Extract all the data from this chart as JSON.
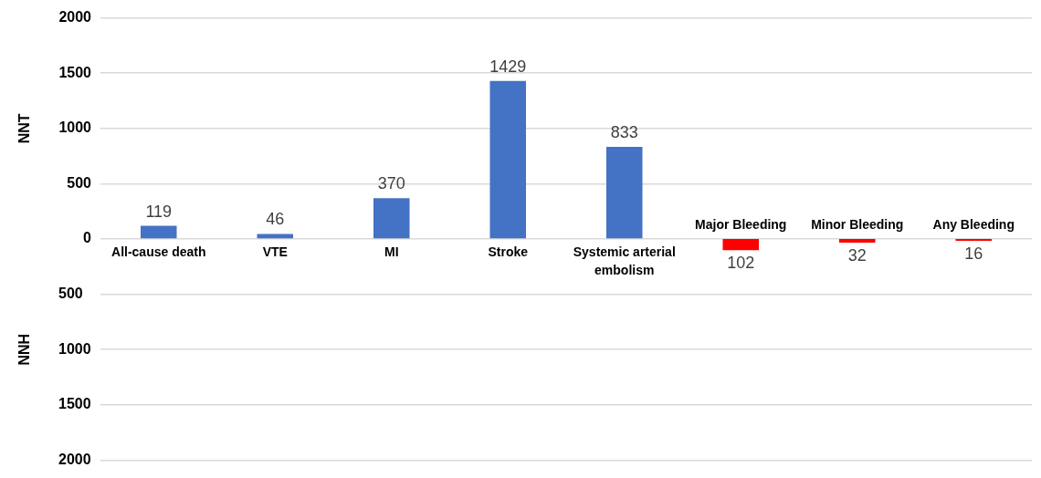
{
  "chart_data": {
    "type": "bar",
    "annotations": [
      "NNT"
    ],
    "y2label": "NNH",
    "categories": [
      "All-cause death",
      "VTE",
      "MI",
      "Stroke",
      "Systemic arterial embolism",
      "Major Bleeding",
      "Minor Bleeding",
      "Any Bleeding"
    ],
    "series": [
      {
        "color": "#4472c4",
        "values": [
          119,
          46,
          370,
          1429,
          833,
          null,
          null,
          null
        ]
      },
      {
        "color": "#ff0000",
        "axis": "y2",
        "values": [
          null,
          null,
          null,
          null,
          null,
          102,
          32,
          16
        ]
      }
    ],
    "data_labels": true,
    "ylim": [
      -2000,
      2000
    ],
    "yticks": [
      0,
      500,
      1000,
      1500,
      2000
    ],
    "y2lim": [
      2000,
      -2000
    ],
    "y2ticks": [
      500,
      1000,
      1500,
      2000
    ],
    "grid": "y",
    "legend": false
  }
}
